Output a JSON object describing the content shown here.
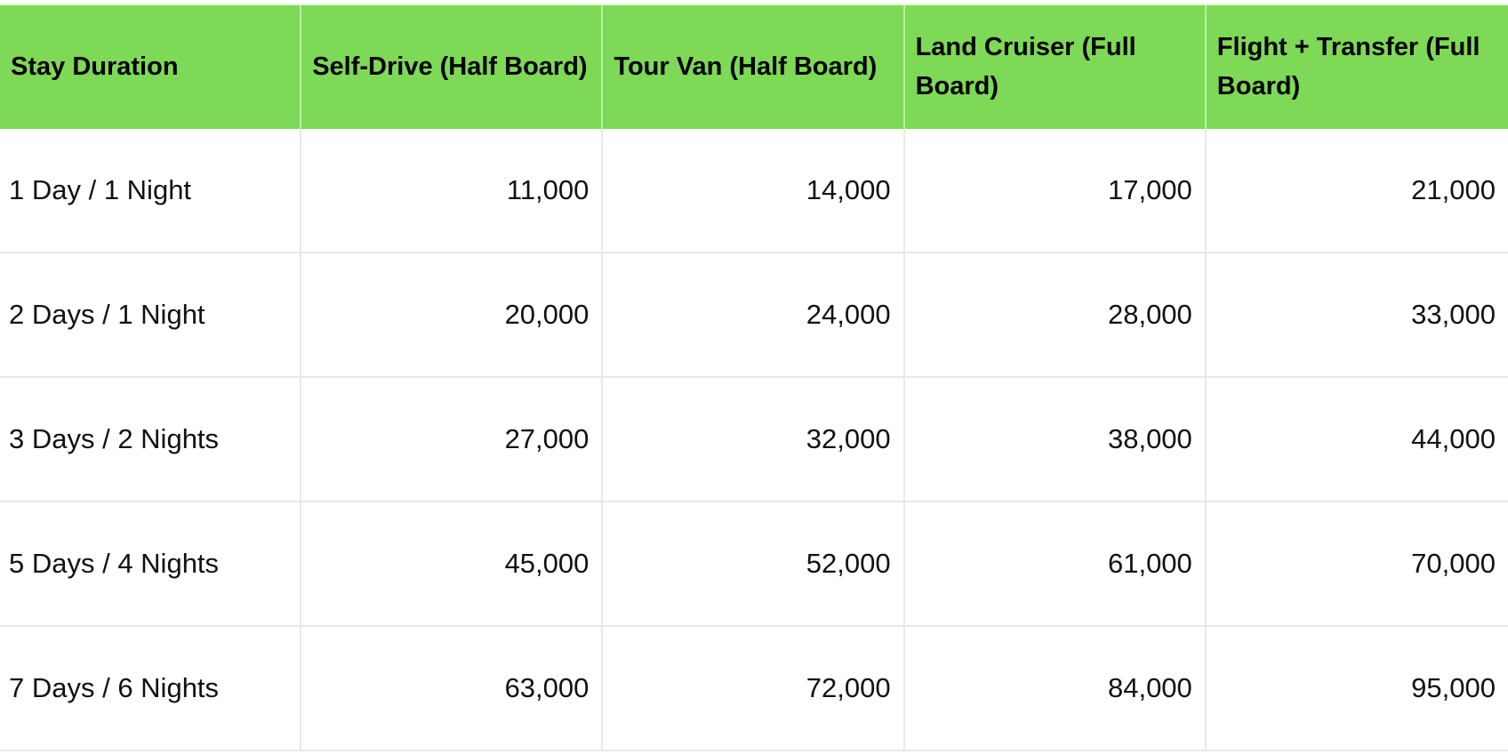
{
  "table": {
    "header": [
      "Stay Duration",
      "Self-Drive (Half Board)",
      "Tour Van (Half Board)",
      "Land Cruiser (Full Board)",
      "Flight + Transfer (Full Board)"
    ],
    "rows": [
      {
        "label": "1 Day / 1 Night",
        "values": [
          "11,000",
          "14,000",
          "17,000",
          "21,000"
        ]
      },
      {
        "label": "2 Days / 1 Night",
        "values": [
          "20,000",
          "24,000",
          "28,000",
          "33,000"
        ]
      },
      {
        "label": "3 Days / 2 Nights",
        "values": [
          "27,000",
          "32,000",
          "38,000",
          "44,000"
        ]
      },
      {
        "label": "5 Days / 4 Nights",
        "values": [
          "45,000",
          "52,000",
          "61,000",
          "70,000"
        ]
      },
      {
        "label": "7 Days / 6 Nights",
        "values": [
          "63,000",
          "72,000",
          "84,000",
          "95,000"
        ]
      }
    ]
  },
  "chart_data": {
    "type": "table",
    "title": "",
    "columns": [
      "Stay Duration",
      "Self-Drive (Half Board)",
      "Tour Van (Half Board)",
      "Land Cruiser (Full Board)",
      "Flight + Transfer (Full Board)"
    ],
    "rows": [
      [
        "1 Day / 1 Night",
        11000,
        14000,
        17000,
        21000
      ],
      [
        "2 Days / 1 Night",
        20000,
        24000,
        28000,
        33000
      ],
      [
        "3 Days / 2 Nights",
        27000,
        32000,
        38000,
        44000
      ],
      [
        "5 Days / 4 Nights",
        45000,
        52000,
        61000,
        70000
      ],
      [
        "7 Days / 6 Nights",
        63000,
        72000,
        84000,
        95000
      ]
    ]
  },
  "colors": {
    "header_bg": "#7ED957",
    "header_text": "#000000",
    "body_text": "#111111",
    "grid_line": "#E7E7E7"
  }
}
